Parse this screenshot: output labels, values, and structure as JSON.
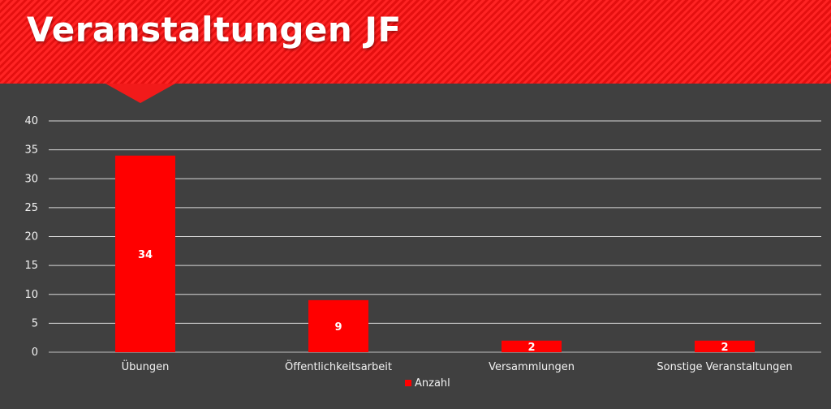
{
  "title": "Veranstaltungen JF",
  "colors": {
    "header": "#ff1a1a",
    "background": "#404040",
    "bar": "#ff0000",
    "grid": "#d9d9d9",
    "text": "#ffffff"
  },
  "chart_data": {
    "type": "bar",
    "categories": [
      "Übungen",
      "Öffentlichkeitsarbeit",
      "Versammlungen",
      "Sonstige Veranstaltungen"
    ],
    "series": [
      {
        "name": "Anzahl",
        "values": [
          34,
          9,
          2,
          2
        ]
      }
    ],
    "data_labels": [
      "34",
      "9",
      "2",
      "2"
    ],
    "yticks": [
      "0",
      "5",
      "10",
      "15",
      "20",
      "25",
      "30",
      "35",
      "40"
    ],
    "ylim": [
      0,
      40
    ],
    "grid": true,
    "legend": "bottom-center"
  }
}
